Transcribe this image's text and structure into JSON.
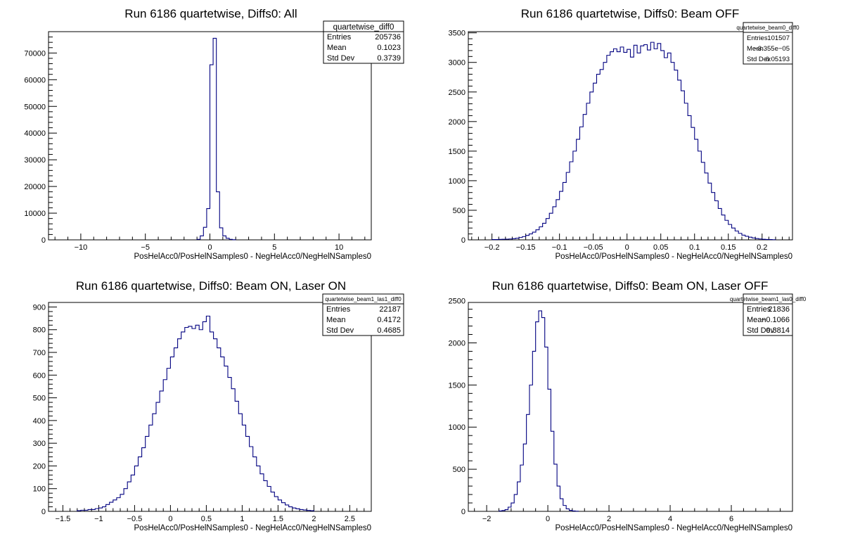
{
  "chart_data": [
    {
      "type": "histogram",
      "title": "Run 6186 quartetwise, Diffs0: All",
      "xlabel": "PosHelAcc0/PosHelNSamples0 - NegHelAcc0/NegHelNSamples0",
      "ylabel": "",
      "xlim": [
        -12.5,
        12.5
      ],
      "ylim": [
        0,
        78000
      ],
      "xticks": [
        -10,
        -5,
        0,
        5,
        10
      ],
      "xtick_labels": [
        "−10",
        "−5",
        "0",
        "5",
        "10"
      ],
      "yticks": [
        0,
        10000,
        20000,
        30000,
        40000,
        50000,
        60000,
        70000
      ],
      "ytick_labels": [
        "0",
        "10000",
        "20000",
        "30000",
        "40000",
        "50000",
        "60000",
        "70000"
      ],
      "bins": {
        "start": -1.0,
        "width": 0.25,
        "counts": [
          200,
          1500,
          4700,
          11700,
          65600,
          75500,
          18000,
          4500,
          1500,
          600,
          200,
          50
        ]
      },
      "stats": {
        "name": "quartetwise_diff0",
        "entries_label": "Entries",
        "entries": "205736",
        "mean_label": "Mean",
        "mean": "0.1023",
        "std_label": "Std Dev",
        "std": "0.3739"
      }
    },
    {
      "type": "histogram",
      "title": "Run 6186 quartetwise, Diffs0: Beam OFF",
      "xlabel": "PosHelAcc0/PosHelNSamples0 - NegHelAcc0/NegHelNSamples0",
      "ylabel": "",
      "xlim": [
        -0.235,
        0.245
      ],
      "ylim": [
        0,
        3520
      ],
      "xticks": [
        -0.2,
        -0.15,
        -0.1,
        -0.05,
        0,
        0.05,
        0.1,
        0.15,
        0.2
      ],
      "xtick_labels": [
        "−0.2",
        "−0.15",
        "−0.1",
        "−0.05",
        "0",
        "0.05",
        "0.1",
        "0.15",
        "0.2"
      ],
      "yticks": [
        0,
        500,
        1000,
        1500,
        2000,
        2500,
        3000,
        3500
      ],
      "ytick_labels": [
        "0",
        "500",
        "1000",
        "1500",
        "2000",
        "2500",
        "3000",
        "3500"
      ],
      "bins": {
        "start": -0.2,
        "width": 0.005,
        "counts": [
          5,
          5,
          8,
          10,
          12,
          15,
          20,
          28,
          40,
          55,
          75,
          100,
          130,
          170,
          220,
          280,
          360,
          450,
          560,
          680,
          820,
          970,
          1140,
          1320,
          1500,
          1700,
          1910,
          2120,
          2310,
          2500,
          2650,
          2800,
          2880,
          3000,
          3120,
          3180,
          3230,
          3180,
          3260,
          3170,
          3220,
          3090,
          3290,
          3160,
          3280,
          3300,
          3210,
          3340,
          3230,
          3320,
          3200,
          3080,
          3160,
          3000,
          2870,
          2700,
          2520,
          2310,
          2100,
          1900,
          1700,
          1500,
          1310,
          1130,
          960,
          800,
          660,
          530,
          420,
          330,
          260,
          200,
          150,
          110,
          80,
          60,
          45,
          32,
          22,
          15,
          10,
          7,
          5,
          3
        ]
      },
      "stats": {
        "name": "quartetwise_beam0_diff0",
        "entries_label": "Entries",
        "entries": "101507",
        "mean_label": "Mean",
        "mean": "−3.355e−05",
        "std_label": "Std Dev",
        "std": "0.05193"
      }
    },
    {
      "type": "histogram",
      "title": "Run 6186 quartetwise, Diffs0: Beam ON, Laser ON",
      "xlabel": "PosHelAcc0/PosHelNSamples0 - NegHelAcc0/NegHelNSamples0",
      "ylabel": "",
      "xlim": [
        -1.7,
        2.8
      ],
      "ylim": [
        0,
        920
      ],
      "xticks": [
        -1.5,
        -1,
        -0.5,
        0,
        0.5,
        1,
        1.5,
        2,
        2.5
      ],
      "xtick_labels": [
        "−1.5",
        "−1",
        "−0.5",
        "0",
        "0.5",
        "1",
        "1.5",
        "2",
        "2.5"
      ],
      "yticks": [
        0,
        100,
        200,
        300,
        400,
        500,
        600,
        700,
        800,
        900
      ],
      "ytick_labels": [
        "0",
        "100",
        "200",
        "300",
        "400",
        "500",
        "600",
        "700",
        "800",
        "900"
      ],
      "bins": {
        "start": -1.3,
        "width": 0.05,
        "counts": [
          3,
          5,
          5,
          8,
          8,
          12,
          15,
          20,
          30,
          40,
          50,
          60,
          75,
          100,
          130,
          160,
          200,
          240,
          280,
          330,
          380,
          430,
          480,
          530,
          580,
          630,
          680,
          720,
          760,
          790,
          810,
          815,
          805,
          820,
          800,
          835,
          860,
          790,
          760,
          720,
          680,
          640,
          590,
          540,
          485,
          430,
          380,
          330,
          285,
          240,
          200,
          165,
          135,
          110,
          85,
          65,
          50,
          38,
          28,
          20,
          15,
          11,
          8,
          6,
          4,
          3
        ]
      },
      "stats": {
        "name": "quartetwise_beam1_las1_diff0",
        "entries_label": "Entries",
        "entries": "22187",
        "mean_label": "Mean",
        "mean": "0.4172",
        "std_label": "Std Dev",
        "std": "0.4685"
      }
    },
    {
      "type": "histogram",
      "title": "Run 6186 quartetwise, Diffs0: Beam ON, Laser OFF",
      "xlabel": "PosHelAcc0/PosHelNSamples0 - NegHelAcc0/NegHelNSamples0",
      "ylabel": "",
      "xlim": [
        -2.6,
        8.0
      ],
      "ylim": [
        0,
        2480
      ],
      "xticks": [
        -2,
        0,
        2,
        4,
        6
      ],
      "xtick_labels": [
        "−2",
        "0",
        "2",
        "4",
        "6"
      ],
      "yticks": [
        0,
        500,
        1000,
        1500,
        2000,
        2500
      ],
      "ytick_labels": [
        "0",
        "500",
        "1000",
        "1500",
        "2000",
        "2500"
      ],
      "bins": {
        "start": -1.6,
        "width": 0.1,
        "counts": [
          5,
          10,
          20,
          50,
          100,
          200,
          350,
          550,
          800,
          1150,
          1500,
          1900,
          2250,
          2380,
          2300,
          1950,
          1450,
          950,
          560,
          300,
          150,
          70,
          30,
          12,
          5,
          2
        ]
      },
      "stats": {
        "name": "quartetwise_beam1_las0_diff0",
        "entries_label": "Entries",
        "entries": "21836",
        "mean_label": "Mean",
        "mean": "−0.1066",
        "std_label": "Std Dev",
        "std": "0.3814"
      }
    }
  ]
}
